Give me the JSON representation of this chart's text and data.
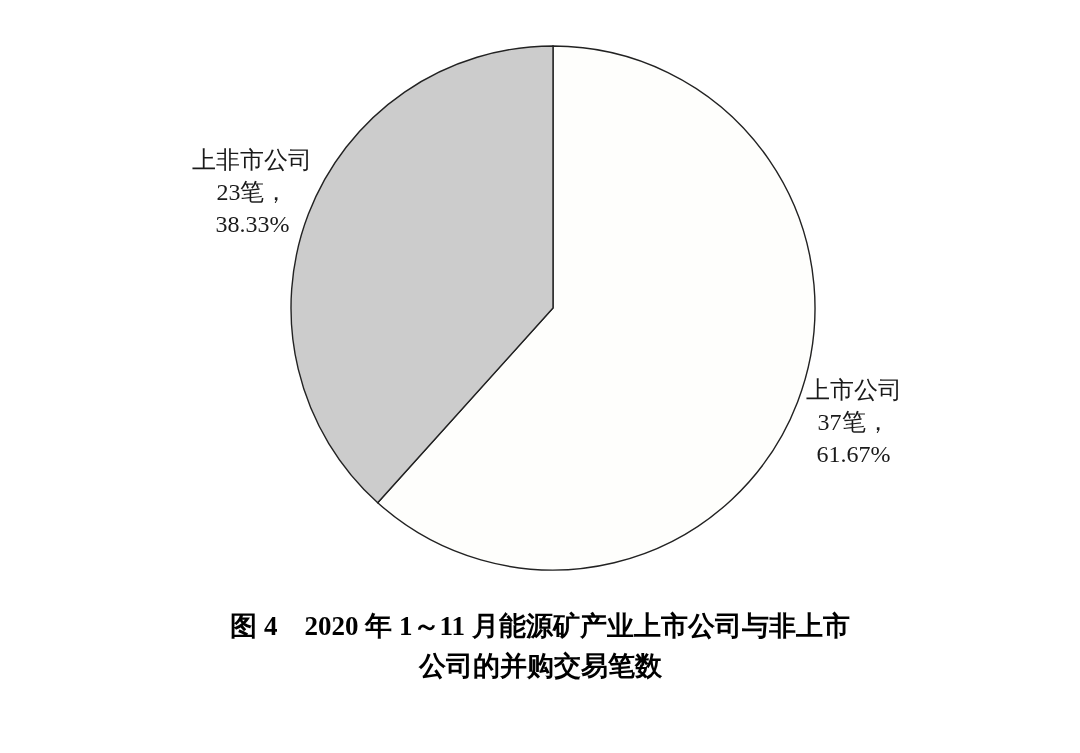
{
  "chart_data": {
    "type": "pie",
    "title": "图 4　2020 年 1～11 月能源矿产业上市公司与非上市公司的并购交易笔数",
    "categories": [
      "上市公司",
      "上非市公司"
    ],
    "values": [
      37,
      23
    ],
    "colors": [
      "#fefefc",
      "#cccccc"
    ],
    "value_labels": [
      "37笔，61.67%",
      "23笔，38.33%"
    ]
  }
}
